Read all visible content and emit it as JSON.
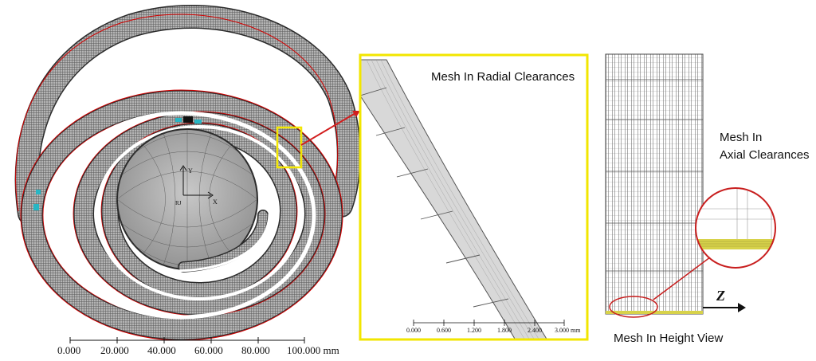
{
  "labels": {
    "radial": "Mesh In Radial Clearances",
    "axial_line1": "Mesh In",
    "axial_line2": "Axial Clearances",
    "height": "Mesh In Height View",
    "z_axis": "Z"
  },
  "spiral_axes": {
    "y": "Y",
    "x": "X",
    "origin": "RJ"
  },
  "main_scale": {
    "ticks": [
      "0.000",
      "20.000",
      "40.000",
      "60.000",
      "80.000",
      "100.000 mm"
    ]
  },
  "detail_scale": {
    "ticks": [
      "0.000",
      "0.600",
      "1.200",
      "1.800",
      "2.400",
      "3.000 mm"
    ]
  },
  "colors": {
    "highlight": "#f2e600",
    "callout": "#d21e1e",
    "mesh": "#2b2b2b",
    "boundary": "#d40000",
    "marker": "#27b6c4",
    "axial_fill": "#d7d24a"
  }
}
